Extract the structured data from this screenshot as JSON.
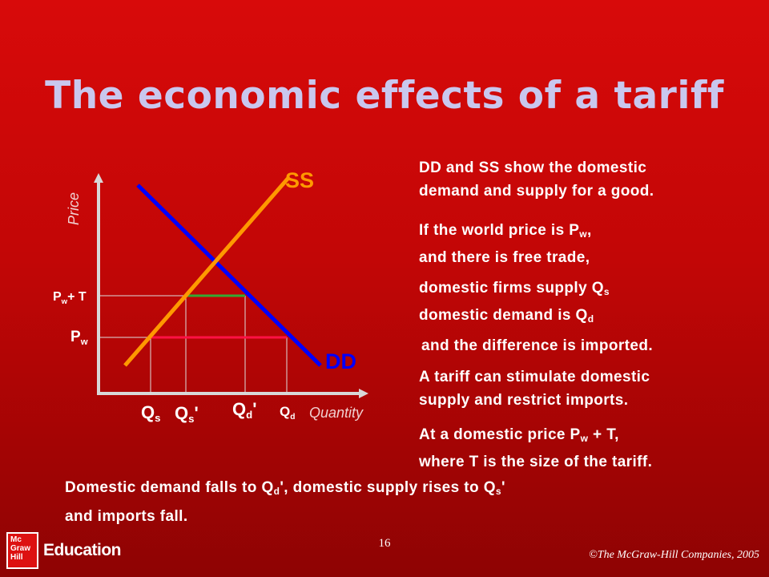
{
  "slide": {
    "title": "The economic effects of a tariff",
    "page_number": "16",
    "copyright": "©The McGraw-Hill Companies, 2005",
    "logo_box": "Mc Graw Hill",
    "logo_text": "Education"
  },
  "diagram": {
    "y_axis_title": "Price",
    "x_axis_title": "Quantity",
    "supply_label": "SS",
    "demand_label": "DD",
    "price_tariff_label": {
      "main": "P",
      "sub": "w",
      "rest": "+ T"
    },
    "price_world_label": {
      "main": "P",
      "sub": "w"
    },
    "qs_label": {
      "main": "Q",
      "sub": "s"
    },
    "qs_prime_label": {
      "main": "Q",
      "sub": "s",
      "rest": "'"
    },
    "qd_prime_label": {
      "main": "Q",
      "sub": "d",
      "rest": "'"
    },
    "qd_label": {
      "main": "Q",
      "sub": "d"
    },
    "colors": {
      "demand": "#0000ff",
      "supply": "#ff9900",
      "tariff_line": "#33aa33",
      "world_line": "#ff1144"
    }
  },
  "text": {
    "p1_line1": "DD and SS show the domestic",
    "p1_line2": "demand and supply for a good.",
    "p2_line1_a": "If the world price is P",
    "p2_line1_sub": "w",
    "p2_line1_b": ",",
    "p2_line2": "and there is free trade,",
    "p3_line1_a": "domestic firms supply Q",
    "p3_line1_sub": "s",
    "p3_line2_a": "domestic demand is Q",
    "p3_line2_sub": "d",
    "p4": "and the difference is imported.",
    "p5_line1": "A tariff can stimulate domestic",
    "p5_line2": "supply and restrict imports.",
    "p6_line1_a": "At a domestic price P",
    "p6_line1_sub": "w",
    "p6_line1_b": " + T,",
    "p6_line2": "where T is the size of the tariff.",
    "bottom_line1_a": "Domestic demand falls to Q",
    "bottom_line1_sub1": "d",
    "bottom_line1_b": "', domestic supply rises to Q",
    "bottom_line1_sub2": "s",
    "bottom_line1_c": "'",
    "bottom_line2": "and imports fall."
  }
}
